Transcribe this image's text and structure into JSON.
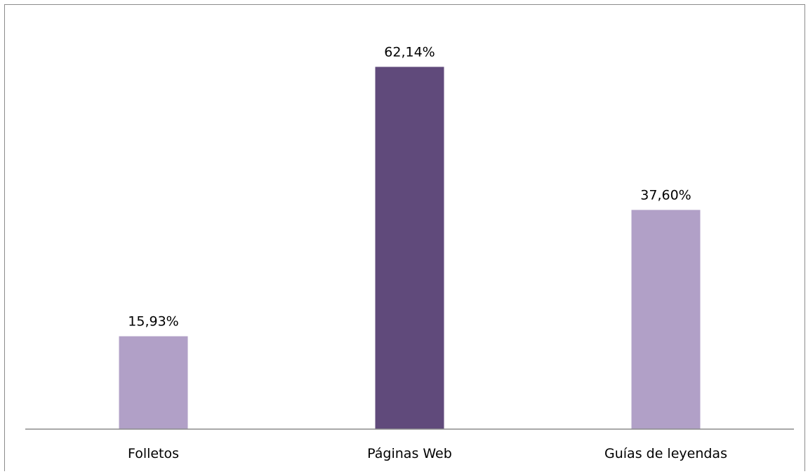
{
  "chart_data": {
    "type": "bar",
    "categories": [
      "Folletos",
      "Páginas Web",
      "Guías de leyendas"
    ],
    "values": [
      15.93,
      62.14,
      37.6
    ],
    "value_labels": [
      "15,93%",
      "62,14%",
      "37,60%"
    ],
    "ylim": [
      0,
      70
    ],
    "grid": false,
    "legend": "none",
    "colors": [
      "#b1a0c7",
      "#604a7b",
      "#b1a0c7"
    ]
  }
}
